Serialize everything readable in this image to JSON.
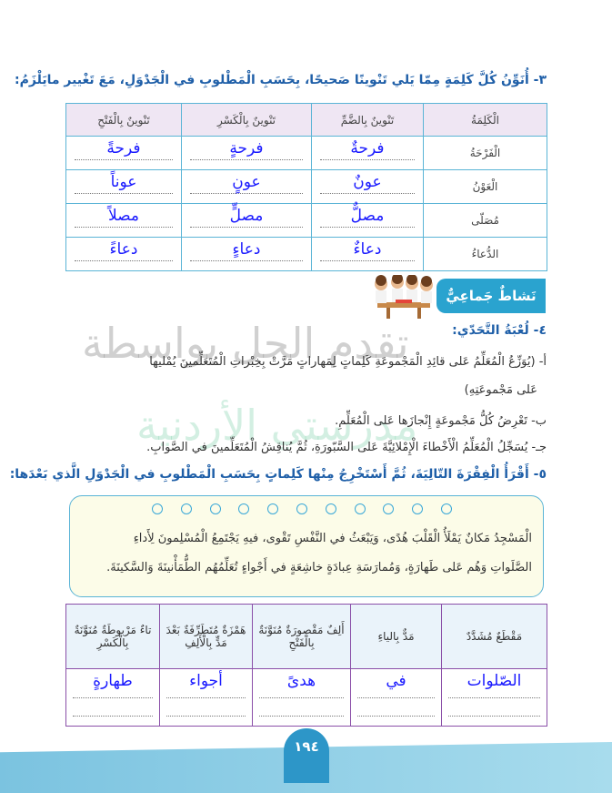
{
  "q3": {
    "title": "٣- أُنَوِّنُ كُلَّ كَلِمَةٍ مِمّا يَلي تَنْوينًا صَحيحًا، بِحَسَبِ الْمَطْلوبِ في الْجَدْوَلِ، مَعَ تَغْيير مايَلْزَمُ:",
    "headers": [
      "الْكَلِمَةُ",
      "تَنْوينٌ بِالضَّمِّ",
      "تَنْوينٌ بِالْكَسْرِ",
      "تَنْوينٌ بِالْفَتْحِ"
    ],
    "rows": [
      {
        "word": "الْفَرْحَةُ",
        "damm": "فرحةٌ",
        "kasr": "فرحةٍ",
        "fath": "فرحةً"
      },
      {
        "word": "الْعَوْنُ",
        "damm": "عونٌ",
        "kasr": "عونٍ",
        "fath": "عوناً"
      },
      {
        "word": "مُصَلّى",
        "damm": "مصلٌّ",
        "kasr": "مصلٍّ",
        "fath": "مصلاً"
      },
      {
        "word": "الدُّعاءُ",
        "damm": "دعاءٌ",
        "kasr": "دعاءٍ",
        "fath": "دعاءً"
      }
    ]
  },
  "activity": {
    "badge": "نَشاطٌ جَماعِيٌّ",
    "image": "children-at-table"
  },
  "q4": {
    "title": "٤- لُعْبَةُ التَّحَدّي:",
    "a1": "أ- (يُوَزِّعُ الْمُعَلِّمُ عَلى قائِدِ الْمَجْموعَةِ كَلِماتٍ لِمَهاراتٍ مَرَّتْ بِخِبْراتِ الْمُتَعَلِّمينَ يُمْليها",
    "a2": "عَلى مَجْموعَتِهِ)",
    "b": "ب- تَعْرِضُ كُلُّ مَجْموعَةٍ إِنْجازَها عَلى الْمُعَلِّمِ.",
    "c": "جـ- يُسَجِّلُ الْمُعَلِّمُ الْأَخْطاءَ الْإِمْلائِيَّةَ عَلى السَّبّورَةِ، ثُمَّ يُناقِشُ الْمُتَعَلِّمينَ في الصَّوابِ."
  },
  "q5": {
    "title": "٥- أَقْرَأُ الْفِقْرَةَ التّالِيَةَ، ثُمَّ أَسْتَخْرِجُ مِنْها كَلِماتٍ بِحَسَبِ الْمَطْلوبِ في الْجَدْوَلِ الَّذي بَعْدَها:",
    "passage1": "الْمَسْجِدُ مَكانٌ يَمْلَأُ الْقَلْبَ هُدًى، وَيَبْعَثُ في النَّفْسِ تَقْوى، فيهِ يَجْتَمِعُ الْمُسْلِمونَ لِأَداءِ",
    "passage2": "الصَّلَواتِ وَهُم عَلى طَهارَةٍ، وَمُمارَسَةِ عِبادَةٍ خاشِعَةٍ في أَجْواءٍ تُعَلِّمُهُم الطُّمَأْنينَةَ وَالسَّكينَةَ.",
    "headers": [
      "مَقْطَعٌ مُشَدَّدٌ",
      "مَدٌّ بِالياءِ",
      "أَلِفٌ مَقْصورَةٌ مُنَوَّنَةٌ بِالْفَتْحِ",
      "هَمْزَةٌ مُتَطَرِّفَةٌ بَعْدَ مَدٍّ بِالْأَلِفِ",
      "تاءٌ مَرْبوطَةٌ مُنَوَّنَةٌ بِالْكَسْرِ"
    ],
    "answers": [
      "الصّلوات",
      "في",
      "هدىً",
      "أجواء",
      "طهارةٍ"
    ]
  },
  "page_number": "١٩٤",
  "watermark": {
    "line1": "تقدم الحل بواسطة",
    "line2": "مدرستي الأردنية"
  },
  "colors": {
    "heading": "#1f5fa8",
    "handwriting": "#1b1bff",
    "table1_border": "#5ab4d6",
    "table2_border": "#8a4fa8",
    "badge": "#2aa3cf"
  }
}
